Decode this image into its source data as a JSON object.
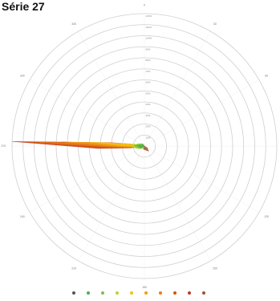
{
  "title": "Série 27",
  "chart_data": {
    "type": "radar",
    "title": "Série 27",
    "angular_unit": "degrees",
    "rings": [
      "10%",
      "20%",
      "30%",
      "40%",
      "50%",
      "60%",
      "70%",
      "80%",
      "90%",
      "100%",
      "110%",
      "120%"
    ],
    "directions": [
      {
        "deg": 0,
        "label": "0"
      },
      {
        "deg": 30,
        "label": "30"
      },
      {
        "deg": 60,
        "label": "60"
      },
      {
        "deg": 90,
        "label": "90"
      },
      {
        "deg": 120,
        "label": "120"
      },
      {
        "deg": 150,
        "label": "150"
      },
      {
        "deg": 180,
        "label": "180"
      },
      {
        "deg": 210,
        "label": "210"
      },
      {
        "deg": 240,
        "label": "240"
      },
      {
        "deg": 270,
        "label": "270"
      },
      {
        "deg": 300,
        "label": "300"
      },
      {
        "deg": 330,
        "label": "330"
      }
    ],
    "series": [
      {
        "color": "#c0392b",
        "points": [
          [
            262,
            12
          ],
          [
            267,
            42
          ],
          [
            272,
            120
          ],
          [
            275,
            35
          ],
          [
            280,
            8
          ]
        ]
      },
      {
        "color": "#d35400",
        "points": [
          [
            262,
            10
          ],
          [
            267,
            36
          ],
          [
            272,
            110
          ],
          [
            276,
            30
          ],
          [
            281,
            7
          ]
        ]
      },
      {
        "color": "#e67e22",
        "points": [
          [
            263,
            9
          ],
          [
            268,
            30
          ],
          [
            272,
            95
          ],
          [
            276,
            26
          ],
          [
            282,
            6
          ]
        ]
      },
      {
        "color": "#f39c12",
        "points": [
          [
            264,
            8
          ],
          [
            269,
            24
          ],
          [
            273,
            75
          ],
          [
            277,
            20
          ],
          [
            283,
            5
          ]
        ]
      },
      {
        "color": "#f1c40f",
        "points": [
          [
            265,
            6
          ],
          [
            270,
            18
          ],
          [
            274,
            50
          ],
          [
            279,
            14
          ],
          [
            285,
            4
          ]
        ]
      },
      {
        "color": "#b8d430",
        "points": [
          [
            230,
            4
          ],
          [
            255,
            8
          ],
          [
            272,
            14
          ],
          [
            290,
            6
          ],
          [
            320,
            3
          ]
        ]
      },
      {
        "color": "#7cc242",
        "points": [
          [
            225,
            3
          ],
          [
            252,
            6
          ],
          [
            273,
            10
          ],
          [
            292,
            5
          ],
          [
            325,
            2
          ]
        ]
      },
      {
        "color": "#4caf50",
        "points": [
          [
            220,
            2
          ],
          [
            250,
            4
          ],
          [
            274,
            7
          ],
          [
            295,
            3
          ],
          [
            330,
            2
          ]
        ]
      },
      {
        "color": "#a0522d",
        "points": [
          [
            120,
            3
          ],
          [
            140,
            6
          ],
          [
            160,
            4
          ],
          [
            200,
            3
          ]
        ]
      }
    ],
    "legend": [
      {
        "color": "#555555",
        "label": ""
      },
      {
        "color": "#4caf50",
        "label": ""
      },
      {
        "color": "#7cc242",
        "label": ""
      },
      {
        "color": "#b8d430",
        "label": ""
      },
      {
        "color": "#f1c40f",
        "label": ""
      },
      {
        "color": "#f39c12",
        "label": ""
      },
      {
        "color": "#e67e22",
        "label": ""
      },
      {
        "color": "#d35400",
        "label": ""
      },
      {
        "color": "#c0392b",
        "label": ""
      },
      {
        "color": "#a0522d",
        "label": ""
      }
    ]
  }
}
